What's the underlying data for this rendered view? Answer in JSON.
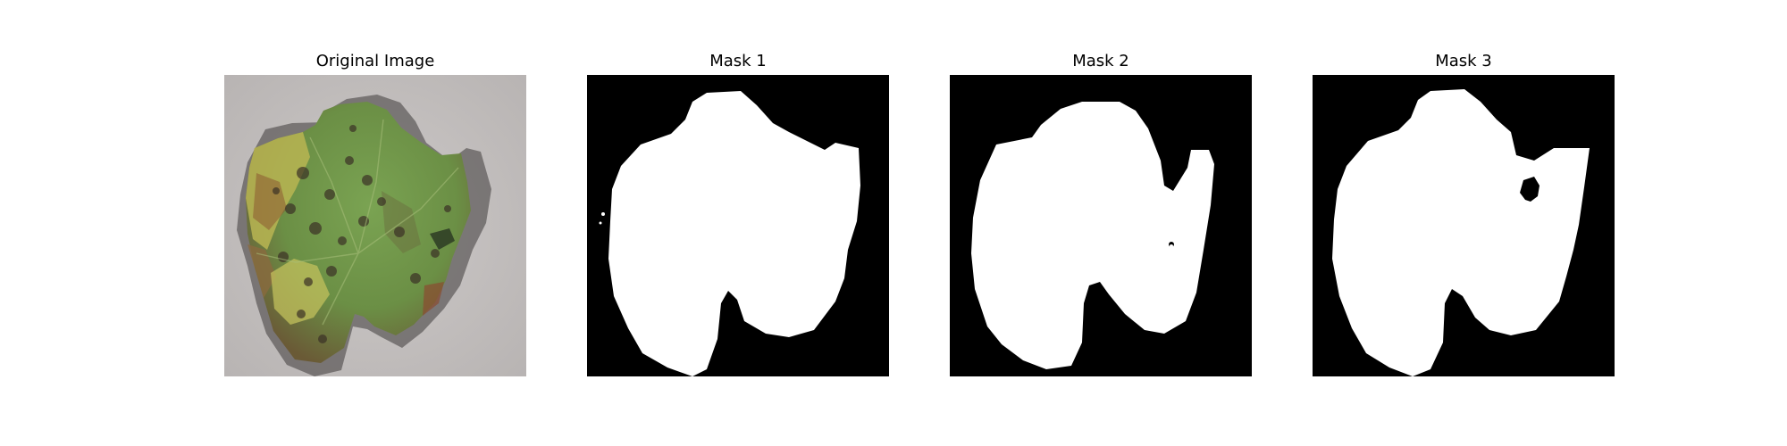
{
  "figure": {
    "panels": [
      {
        "title": "Original Image"
      },
      {
        "title": "Mask 1"
      },
      {
        "title": "Mask 2"
      },
      {
        "title": "Mask 3"
      }
    ]
  },
  "colors": {
    "background": "#ffffff",
    "mask_background": "#000000",
    "mask_foreground": "#ffffff",
    "photo_background": "#c4c0bf",
    "leaf_green": "#6d9748",
    "leaf_yellow": "#c7c456",
    "leaf_brown": "#7d5a3b",
    "spots_dark": "#3c3226"
  }
}
